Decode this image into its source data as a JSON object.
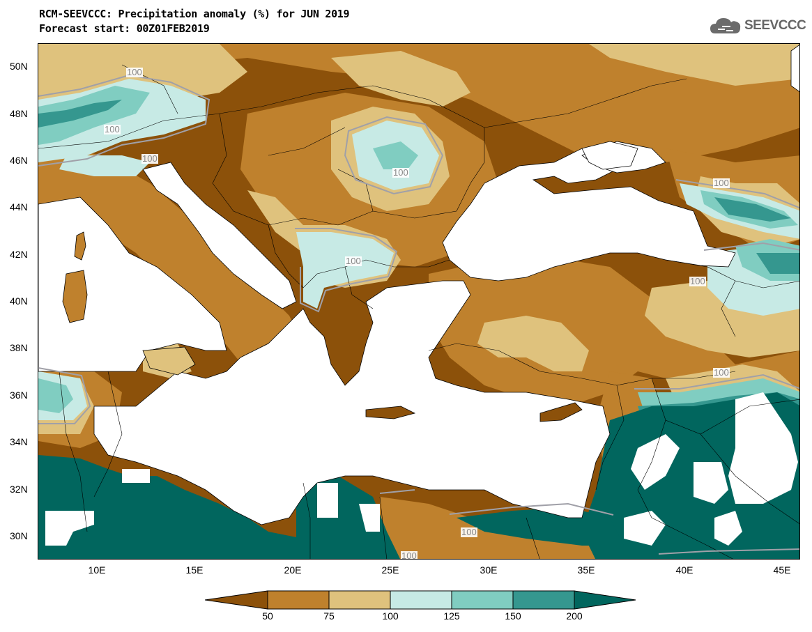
{
  "header": {
    "title_line1": "RCM-SEEVCCC: Precipitation anomaly (%) for JUN 2019",
    "title_line2": "Forecast start: 00Z01FEB2019"
  },
  "logo": {
    "text": "SEEVCCC",
    "icon": "cloud-logo-icon"
  },
  "map": {
    "lat_labels": [
      "50N",
      "48N",
      "46N",
      "44N",
      "42N",
      "40N",
      "38N",
      "36N",
      "34N",
      "32N",
      "30N"
    ],
    "lon_labels": [
      "10E",
      "15E",
      "20E",
      "25E",
      "30E",
      "35E",
      "40E",
      "45E"
    ],
    "contour_labels": [
      "100",
      "100",
      "100",
      "100",
      "100",
      "100",
      "100",
      "100",
      "100",
      "100"
    ],
    "colors": {
      "lt50": "#8c510a",
      "50_75": "#bf812d",
      "75_100": "#dfc27d",
      "100_125": "#c7eae5",
      "125_150": "#80cdc1",
      "150_200": "#35978f",
      "gt200": "#01665e",
      "sea": "#ffffff"
    }
  },
  "colorbar": {
    "labels": [
      "50",
      "75",
      "100",
      "125",
      "150",
      "200"
    ],
    "colors": [
      "#8c510a",
      "#bf812d",
      "#dfc27d",
      "#c7eae5",
      "#80cdc1",
      "#35978f",
      "#01665e"
    ]
  }
}
